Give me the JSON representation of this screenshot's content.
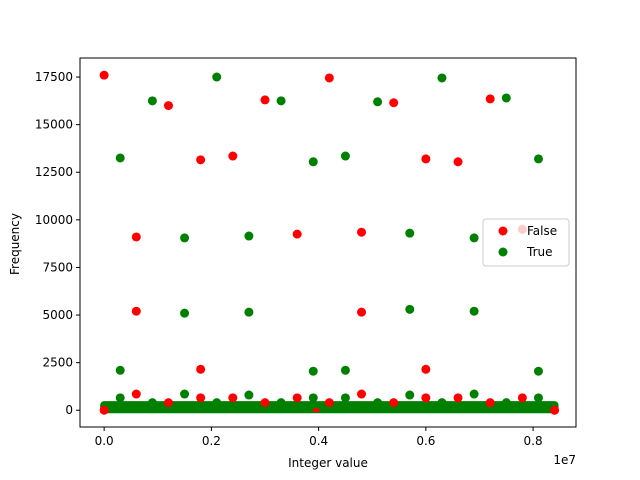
{
  "chart_data": {
    "type": "scatter",
    "xlabel": "Integer value",
    "ylabel": "Frequency",
    "x_offset_label": "1e7",
    "xlim": [
      -450000,
      8800000
    ],
    "ylim": [
      -880,
      18500
    ],
    "x_ticks": [
      0,
      2000000,
      4000000,
      6000000,
      8000000
    ],
    "x_tick_labels": [
      "0.0",
      "0.2",
      "0.4",
      "0.6",
      "0.8"
    ],
    "y_ticks": [
      0,
      2500,
      5000,
      7500,
      10000,
      12500,
      15000,
      17500
    ],
    "y_tick_labels": [
      "0",
      "2500",
      "5000",
      "7500",
      "10000",
      "12500",
      "15000",
      "17500"
    ],
    "legend_position": "center-right",
    "series": [
      {
        "name": "False",
        "color": "#ff0000",
        "x": [
          0,
          600000,
          600000,
          1200000,
          1800000,
          1800000,
          2400000,
          3000000,
          3600000,
          4200000,
          4800000,
          4800000,
          5400000,
          6000000,
          6000000,
          6600000,
          7200000,
          600000,
          1200000,
          1800000,
          2400000,
          3000000,
          3600000,
          4200000,
          4800000,
          5400000,
          6000000,
          6600000,
          7200000,
          7800000,
          8400000,
          7800000
        ],
        "y": [
          17600,
          9100,
          5200,
          16000,
          13150,
          2150,
          13350,
          16300,
          9250,
          17450,
          9350,
          5150,
          16150,
          13200,
          2150,
          13050,
          16350,
          850,
          400,
          650,
          650,
          400,
          650,
          400,
          850,
          400,
          650,
          650,
          400,
          650,
          0,
          9500
        ]
      },
      {
        "name": "True",
        "color": "#008000",
        "x": [
          300000,
          300000,
          900000,
          1500000,
          1500000,
          2100000,
          2700000,
          2700000,
          3300000,
          3900000,
          3900000,
          4500000,
          4500000,
          5100000,
          5700000,
          5700000,
          6300000,
          6900000,
          6900000,
          7500000,
          8100000,
          8100000,
          300000,
          900000,
          1500000,
          2100000,
          2700000,
          3300000,
          3900000,
          4500000,
          5100000,
          5700000,
          6300000,
          6900000,
          7500000,
          8100000
        ],
        "y": [
          13250,
          2100,
          16250,
          9050,
          5100,
          17500,
          9150,
          5150,
          16250,
          13050,
          2050,
          13350,
          2100,
          16200,
          9300,
          5300,
          17450,
          9050,
          5200,
          16400,
          13200,
          2050,
          650,
          400,
          850,
          400,
          800,
          400,
          650,
          650,
          400,
          800,
          400,
          850,
          400,
          650
        ]
      }
    ],
    "baseline_band": {
      "x_start": 0,
      "x_end": 8400000,
      "y_max": 320
    }
  }
}
